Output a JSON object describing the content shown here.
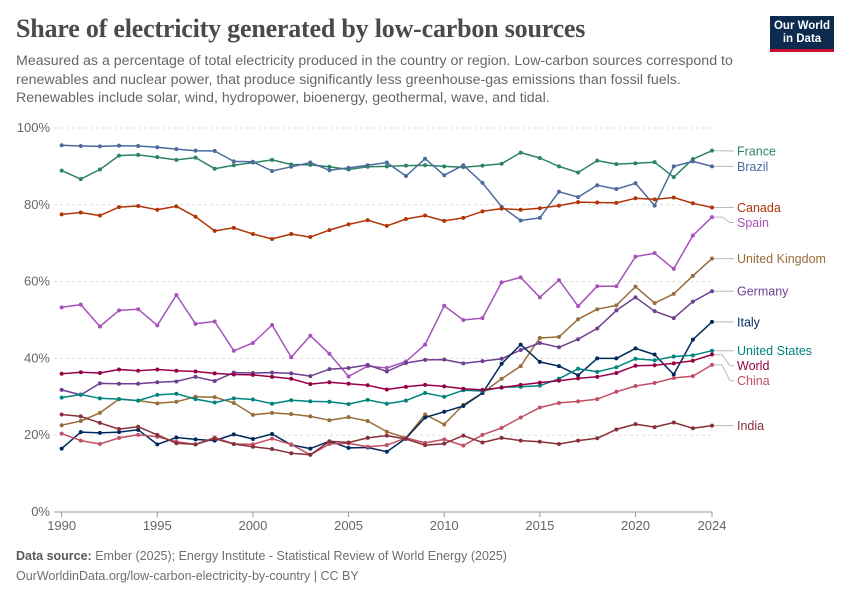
{
  "header": {
    "title": "Share of electricity generated by low-carbon sources",
    "subtitle": "Measured as a percentage of total electricity produced in the country or region. Low-carbon sources correspond to renewables and nuclear power, that produce significantly less greenhouse-gas emissions than fossil fuels. Renewables include solar, wind, hydropower, bioenergy, geothermal, wave, and tidal."
  },
  "logo": {
    "line1": "Our World",
    "line2": "in Data"
  },
  "footer": {
    "source_label": "Data source:",
    "source_text": "Ember (2025); Energy Institute - Statistical Review of World Energy (2025)",
    "url_text": "OurWorldinData.org/low-carbon-electricity-by-country | CC BY"
  },
  "chart_data": {
    "type": "line",
    "title": "Share of electricity generated by low-carbon sources",
    "xlabel": "",
    "ylabel": "",
    "xlim": [
      1989.6,
      2024
    ],
    "ylim": [
      0,
      100
    ],
    "y_ticks": [
      0,
      20,
      40,
      60,
      80,
      100
    ],
    "y_tick_labels": [
      "0%",
      "20%",
      "40%",
      "60%",
      "80%",
      "100%"
    ],
    "x_ticks": [
      1990,
      1995,
      2000,
      2005,
      2010,
      2015,
      2020,
      2024
    ],
    "x_tick_labels": [
      "1990",
      "1995",
      "2000",
      "2005",
      "2010",
      "2015",
      "2020",
      "2024"
    ],
    "grid": true,
    "x": [
      1990,
      1991,
      1992,
      1993,
      1994,
      1995,
      1996,
      1997,
      1998,
      1999,
      2000,
      2001,
      2002,
      2003,
      2004,
      2005,
      2006,
      2007,
      2008,
      2009,
      2010,
      2011,
      2012,
      2013,
      2014,
      2015,
      2016,
      2017,
      2018,
      2019,
      2020,
      2021,
      2022,
      2023,
      2024
    ],
    "series": [
      {
        "name": "France",
        "color": "#2c8465",
        "label_value": 94,
        "values": [
          88.9,
          86.7,
          89.2,
          92.8,
          93.0,
          92.4,
          91.7,
          92.3,
          89.4,
          90.3,
          91.0,
          91.7,
          90.5,
          90.4,
          89.9,
          89.2,
          89.9,
          90.0,
          90.2,
          90.3,
          90.0,
          89.8,
          90.2,
          90.7,
          93.6,
          92.2,
          90.0,
          88.4,
          91.5,
          90.6,
          90.8,
          91.1,
          87.2,
          91.9,
          94.1
        ]
      },
      {
        "name": "Brazil",
        "color": "#4c6a9c",
        "label_value": 90,
        "values": [
          95.5,
          95.3,
          95.2,
          95.4,
          95.3,
          95.0,
          94.5,
          94.1,
          94.0,
          91.3,
          91.2,
          88.8,
          89.9,
          91.0,
          89.0,
          89.6,
          90.3,
          91.0,
          87.5,
          92.0,
          87.7,
          90.3,
          85.7,
          79.5,
          75.9,
          76.6,
          83.4,
          82.0,
          85.1,
          84.1,
          85.6,
          79.8,
          90.0,
          91.3,
          90.0
        ]
      },
      {
        "name": "Canada",
        "color": "#b13507",
        "label_value": 79.3,
        "values": [
          77.5,
          78.0,
          77.2,
          79.4,
          79.7,
          78.7,
          79.6,
          76.9,
          73.2,
          74.0,
          72.4,
          71.1,
          72.4,
          71.6,
          73.4,
          74.9,
          76.0,
          74.5,
          76.3,
          77.2,
          75.8,
          76.6,
          78.3,
          79.0,
          78.7,
          79.1,
          79.8,
          80.7,
          80.6,
          80.5,
          81.7,
          81.4,
          81.9,
          80.4,
          79.3
        ]
      },
      {
        "name": "Spain",
        "color": "#a652ba",
        "label_value": 76.8,
        "values": [
          53.3,
          54.0,
          48.3,
          52.5,
          52.8,
          48.6,
          56.5,
          49.0,
          49.6,
          42.0,
          44.0,
          48.7,
          40.3,
          45.9,
          41.2,
          35.3,
          38.0,
          37.5,
          39.2,
          43.6,
          53.7,
          50.0,
          50.5,
          59.8,
          61.1,
          55.9,
          60.4,
          53.6,
          58.8,
          58.8,
          66.5,
          67.4,
          63.3,
          72.0,
          76.8
        ]
      },
      {
        "name": "United Kingdom",
        "color": "#996d39",
        "label_value": 66,
        "values": [
          22.6,
          23.7,
          25.8,
          29.4,
          29.0,
          28.3,
          28.7,
          30.0,
          29.9,
          28.4,
          25.3,
          25.8,
          25.5,
          24.9,
          23.9,
          24.7,
          23.7,
          20.9,
          19.3,
          25.4,
          22.8,
          27.9,
          31.0,
          34.7,
          38.0,
          45.3,
          45.6,
          50.2,
          52.8,
          53.8,
          58.7,
          54.4,
          56.8,
          61.5,
          66.0
        ]
      },
      {
        "name": "Germany",
        "color": "#6d3e91",
        "label_value": 57.5,
        "values": [
          31.8,
          30.5,
          33.5,
          33.4,
          33.4,
          33.8,
          34.0,
          35.2,
          34.1,
          36.3,
          36.2,
          36.3,
          36.1,
          35.4,
          37.2,
          37.5,
          38.3,
          36.6,
          38.8,
          39.6,
          39.7,
          38.7,
          39.3,
          39.9,
          42.2,
          44.0,
          42.9,
          45.0,
          47.8,
          52.5,
          55.9,
          52.3,
          50.5,
          54.8,
          57.5
        ]
      },
      {
        "name": "Italy",
        "color": "#00295b",
        "label_value": 49.5,
        "values": [
          16.5,
          20.8,
          20.6,
          20.8,
          21.4,
          17.6,
          19.4,
          18.9,
          18.6,
          20.2,
          19.0,
          20.3,
          17.5,
          16.5,
          18.4,
          16.7,
          16.8,
          15.7,
          19.2,
          24.6,
          26.1,
          27.6,
          31.0,
          38.6,
          43.6,
          39.1,
          38.0,
          35.6,
          40.0,
          40.0,
          42.6,
          41.0,
          35.8,
          44.9,
          49.5
        ]
      },
      {
        "name": "United States",
        "color": "#00847e",
        "label_value": 42,
        "values": [
          29.8,
          30.6,
          29.6,
          29.4,
          29.0,
          30.5,
          30.8,
          29.4,
          28.5,
          29.6,
          29.3,
          28.2,
          29.1,
          28.8,
          28.7,
          28.1,
          29.2,
          28.2,
          29.0,
          31.0,
          30.0,
          31.7,
          31.5,
          32.5,
          32.6,
          32.9,
          34.7,
          37.3,
          36.5,
          37.7,
          39.9,
          39.5,
          40.5,
          40.8,
          42.0
        ]
      },
      {
        "name": "World",
        "color": "#970046",
        "label_value": 41,
        "values": [
          36.0,
          36.4,
          36.2,
          37.1,
          36.8,
          37.1,
          36.8,
          36.6,
          36.1,
          35.8,
          35.7,
          35.2,
          34.7,
          33.3,
          33.8,
          33.4,
          33.0,
          31.9,
          32.6,
          33.1,
          32.7,
          32.1,
          31.8,
          32.4,
          33.1,
          33.7,
          34.2,
          34.8,
          35.2,
          36.2,
          38.1,
          38.2,
          38.7,
          39.4,
          41.0
        ]
      },
      {
        "name": "China",
        "color": "#c15065",
        "label_value": 38.3,
        "values": [
          20.4,
          18.6,
          17.7,
          19.3,
          20.1,
          19.6,
          18.3,
          17.6,
          19.4,
          17.7,
          17.6,
          19.1,
          17.6,
          14.9,
          17.7,
          17.9,
          17.0,
          17.4,
          19.3,
          18.0,
          18.9,
          17.3,
          20.1,
          21.9,
          24.6,
          27.2,
          28.4,
          28.8,
          29.4,
          31.3,
          32.8,
          33.6,
          34.9,
          35.4,
          38.3
        ]
      },
      {
        "name": "India",
        "color": "#883039",
        "label_value": 22.5,
        "values": [
          25.4,
          24.9,
          23.2,
          21.6,
          22.2,
          20.1,
          17.9,
          17.6,
          19.1,
          17.7,
          17.0,
          16.4,
          15.3,
          14.9,
          18.4,
          18.1,
          19.3,
          19.9,
          19.0,
          17.4,
          17.8,
          19.9,
          18.1,
          19.3,
          18.6,
          18.3,
          17.7,
          18.6,
          19.2,
          21.5,
          22.9,
          22.1,
          23.3,
          21.8,
          22.5
        ]
      }
    ]
  }
}
